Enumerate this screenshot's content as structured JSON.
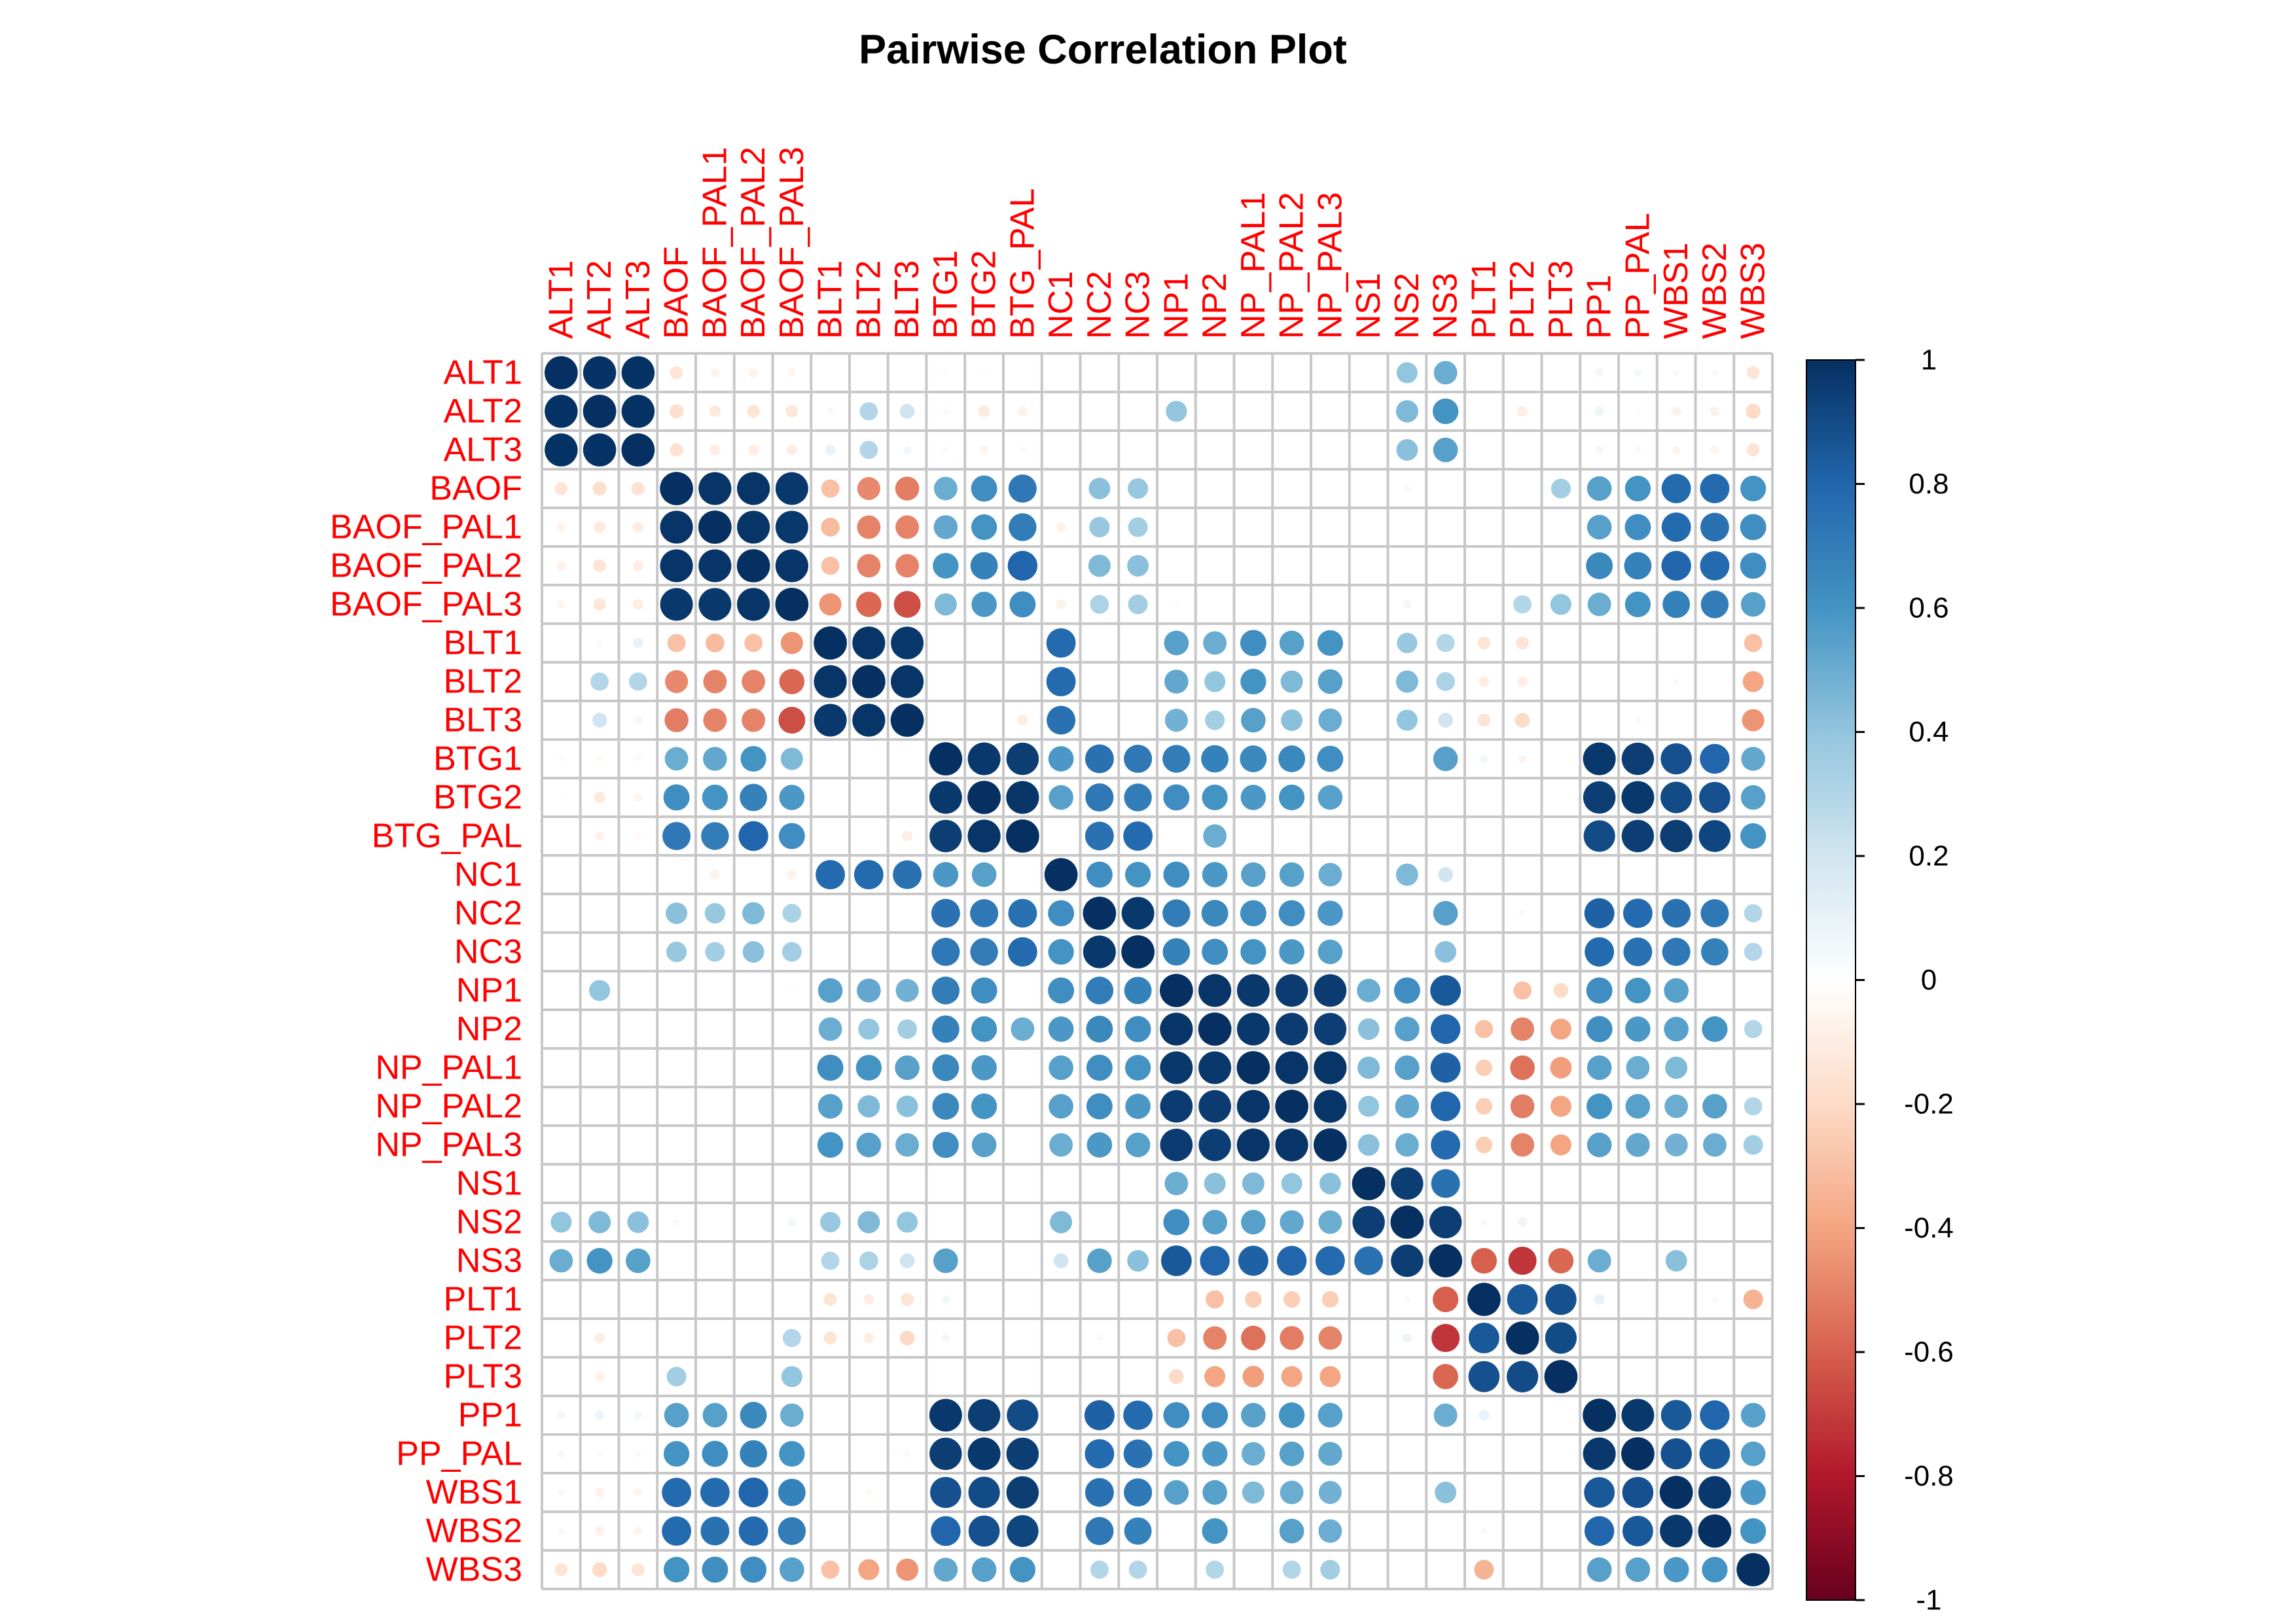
{
  "chart_data": {
    "type": "heatmap",
    "style": "circle correlation matrix",
    "title": "Pairwise Correlation Plot",
    "labels": [
      "ALT1",
      "ALT2",
      "ALT3",
      "BAOF",
      "BAOF_PAL1",
      "BAOF_PAL2",
      "BAOF_PAL3",
      "BLT1",
      "BLT2",
      "BLT3",
      "BTG1",
      "BTG2",
      "BTG_PAL",
      "NC1",
      "NC2",
      "NC3",
      "NP1",
      "NP2",
      "NP_PAL1",
      "NP_PAL2",
      "NP_PAL3",
      "NS1",
      "NS2",
      "NS3",
      "PLT1",
      "PLT2",
      "PLT3",
      "PP1",
      "PP_PAL",
      "WBS1",
      "WBS2",
      "WBS3"
    ],
    "label_color": "#FF0000",
    "colorbar": {
      "range": [
        -1,
        1
      ],
      "ticks": [
        "1",
        "0.8",
        "0.6",
        "0.4",
        "0.2",
        "0",
        "-0.2",
        "-0.4",
        "-0.6",
        "-0.8",
        "-1"
      ],
      "tick_values": [
        1,
        0.8,
        0.6,
        0.4,
        0.2,
        0,
        -0.2,
        -0.4,
        -0.6,
        -0.8,
        -1
      ],
      "palette": [
        "#67001F",
        "#B2182B",
        "#D6604D",
        "#F4A582",
        "#FDDBC7",
        "#FFFFFF",
        "#D1E5F0",
        "#92C5DE",
        "#4393C3",
        "#2166AC",
        "#053061"
      ]
    },
    "grid": true,
    "legend_position": "right",
    "matrix": [
      [
        1,
        0.99,
        0.99,
        -0.15,
        -0.07,
        -0.08,
        -0.06,
        0,
        0,
        0,
        -0.03,
        -0.02,
        0,
        0,
        0,
        0,
        0,
        0,
        0,
        0,
        0,
        0,
        0.4,
        0.5,
        0,
        0,
        0,
        0.06,
        0.05,
        0.04,
        0.04,
        -0.15
      ],
      [
        0.99,
        1,
        0.99,
        -0.18,
        -0.12,
        -0.15,
        -0.14,
        0.04,
        0.3,
        0.2,
        -0.04,
        -0.12,
        -0.08,
        0,
        0,
        0,
        0.4,
        0,
        0,
        0,
        0,
        0,
        0.45,
        0.6,
        0,
        -0.1,
        0,
        0.08,
        0.03,
        -0.08,
        -0.08,
        -0.2
      ],
      [
        0.99,
        0.99,
        1,
        -0.16,
        -0.1,
        -0.1,
        -0.1,
        0.1,
        0.3,
        0.06,
        -0.04,
        -0.06,
        -0.04,
        0,
        0,
        0,
        0,
        0,
        0,
        0,
        0,
        0,
        0.42,
        0.55,
        0,
        0,
        0,
        0.06,
        0.04,
        -0.06,
        -0.06,
        -0.15
      ],
      [
        -0.15,
        -0.18,
        -0.16,
        1,
        0.98,
        0.98,
        0.97,
        -0.3,
        -0.48,
        -0.52,
        0.5,
        0.62,
        0.72,
        0,
        0.42,
        0.38,
        0,
        0,
        0,
        0,
        0,
        0,
        0.04,
        0,
        0,
        0,
        0.35,
        0.55,
        0.6,
        0.78,
        0.78,
        0.6
      ],
      [
        -0.07,
        -0.12,
        -0.1,
        0.98,
        1,
        0.98,
        0.97,
        -0.32,
        -0.5,
        -0.5,
        0.52,
        0.6,
        0.7,
        -0.08,
        0.38,
        0.35,
        0,
        0,
        0,
        0,
        0,
        0,
        0,
        0,
        0,
        0,
        0,
        0.55,
        0.62,
        0.78,
        0.75,
        0.62
      ],
      [
        -0.08,
        -0.15,
        -0.1,
        0.98,
        0.98,
        1,
        0.98,
        -0.3,
        -0.5,
        -0.5,
        0.6,
        0.68,
        0.8,
        0,
        0.45,
        0.42,
        0,
        0,
        0,
        0,
        0,
        0,
        0,
        0,
        0,
        0,
        0,
        0.65,
        0.68,
        0.8,
        0.78,
        0.62
      ],
      [
        -0.06,
        -0.14,
        -0.1,
        0.97,
        0.97,
        0.98,
        1,
        -0.45,
        -0.58,
        -0.65,
        0.45,
        0.58,
        0.62,
        -0.08,
        0.32,
        0.35,
        0.02,
        0,
        0,
        0,
        0,
        0,
        0.06,
        0,
        0,
        0.3,
        0.4,
        0.5,
        0.6,
        0.68,
        0.7,
        0.55
      ],
      [
        0,
        0.04,
        0.1,
        -0.3,
        -0.32,
        -0.3,
        -0.45,
        1,
        0.98,
        0.97,
        0,
        0,
        0,
        0.78,
        0,
        0,
        0.55,
        0.5,
        0.62,
        0.55,
        0.6,
        0,
        0.38,
        0.3,
        -0.15,
        -0.15,
        0,
        0,
        0,
        0,
        0,
        -0.3
      ],
      [
        0,
        0.3,
        0.3,
        -0.48,
        -0.5,
        -0.5,
        -0.58,
        0.98,
        1,
        0.98,
        0,
        0,
        0,
        0.78,
        0,
        0,
        0.52,
        0.4,
        0.6,
        0.45,
        0.55,
        0,
        0.45,
        0.32,
        -0.1,
        -0.1,
        0,
        0,
        0,
        -0.04,
        0,
        -0.4
      ],
      [
        0,
        0.2,
        0.06,
        -0.52,
        -0.5,
        -0.5,
        -0.65,
        0.97,
        0.98,
        1,
        0,
        0,
        -0.1,
        0.75,
        0,
        0,
        0.48,
        0.35,
        0.55,
        0.42,
        0.5,
        0,
        0.4,
        0.2,
        -0.15,
        -0.2,
        0,
        0,
        -0.04,
        0,
        0,
        -0.45
      ],
      [
        -0.03,
        -0.04,
        -0.04,
        0.5,
        0.52,
        0.6,
        0.45,
        0,
        0,
        0,
        1,
        0.97,
        0.95,
        0.58,
        0.75,
        0.72,
        0.7,
        0.68,
        0.65,
        0.65,
        0.62,
        0,
        0,
        0.55,
        0.06,
        -0.06,
        0,
        0.97,
        0.95,
        0.88,
        0.8,
        0.52
      ],
      [
        -0.02,
        -0.12,
        -0.06,
        0.62,
        0.6,
        0.68,
        0.58,
        0,
        0,
        0,
        0.97,
        1,
        0.98,
        0.55,
        0.72,
        0.7,
        0.62,
        0.6,
        0.58,
        0.6,
        0.55,
        0,
        0,
        0,
        0,
        0,
        0,
        0.95,
        0.97,
        0.9,
        0.88,
        0.55
      ],
      [
        0,
        -0.08,
        -0.04,
        0.72,
        0.7,
        0.8,
        0.62,
        0,
        0,
        -0.1,
        0.95,
        0.98,
        1,
        0,
        0.75,
        0.78,
        0,
        0.5,
        0,
        0,
        0,
        0,
        0,
        0,
        0,
        0,
        0,
        0.9,
        0.95,
        0.95,
        0.92,
        0.6
      ],
      [
        0,
        0,
        0,
        0,
        -0.08,
        0,
        -0.08,
        0.78,
        0.78,
        0.75,
        0.58,
        0.55,
        0,
        1,
        0.62,
        0.6,
        0.62,
        0.58,
        0.55,
        0.55,
        0.5,
        0,
        0.45,
        0.2,
        0,
        0,
        0,
        0,
        0,
        0,
        0,
        0
      ],
      [
        0,
        0,
        0,
        0.42,
        0.38,
        0.45,
        0.32,
        0,
        0,
        0,
        0.75,
        0.72,
        0.75,
        0.62,
        1,
        0.97,
        0.7,
        0.65,
        0.62,
        0.62,
        0.58,
        0,
        0,
        0.55,
        0,
        0.04,
        0,
        0.82,
        0.78,
        0.75,
        0.72,
        0.3
      ],
      [
        0,
        0,
        0,
        0.38,
        0.35,
        0.42,
        0.35,
        0,
        0,
        0,
        0.72,
        0.7,
        0.78,
        0.6,
        0.97,
        1,
        0.68,
        0.62,
        0.6,
        0.58,
        0.55,
        0,
        0,
        0.42,
        0,
        0,
        0,
        0.78,
        0.75,
        0.72,
        0.68,
        0.3
      ],
      [
        0,
        0.4,
        0,
        0,
        0,
        0,
        0.02,
        0.55,
        0.52,
        0.48,
        0.7,
        0.62,
        0,
        0.62,
        0.7,
        0.68,
        1,
        0.98,
        0.97,
        0.96,
        0.96,
        0.5,
        0.62,
        0.85,
        0,
        -0.3,
        -0.2,
        0.62,
        0.6,
        0.55,
        0,
        0
      ],
      [
        0,
        0,
        0,
        0,
        0,
        0,
        0,
        0.5,
        0.4,
        0.35,
        0.68,
        0.6,
        0.5,
        0.58,
        0.65,
        0.62,
        0.98,
        1,
        0.97,
        0.96,
        0.95,
        0.42,
        0.55,
        0.8,
        -0.3,
        -0.5,
        -0.4,
        0.62,
        0.58,
        0.55,
        0.6,
        0.3
      ],
      [
        0,
        0,
        0,
        0,
        0,
        0,
        0,
        0.62,
        0.6,
        0.55,
        0.65,
        0.58,
        0,
        0.55,
        0.62,
        0.6,
        0.97,
        0.97,
        1,
        0.98,
        0.98,
        0.45,
        0.55,
        0.82,
        -0.25,
        -0.55,
        -0.42,
        0.55,
        0.5,
        0.45,
        0,
        0
      ],
      [
        0,
        0,
        0,
        0,
        0,
        0,
        0,
        0.55,
        0.45,
        0.42,
        0.65,
        0.6,
        0,
        0.55,
        0.62,
        0.58,
        0.96,
        0.96,
        0.98,
        1,
        0.98,
        0.4,
        0.52,
        0.8,
        -0.25,
        -0.52,
        -0.4,
        0.6,
        0.55,
        0.5,
        0.55,
        0.3
      ],
      [
        0,
        0,
        0,
        0,
        0,
        0,
        0,
        0.6,
        0.55,
        0.5,
        0.62,
        0.55,
        0,
        0.5,
        0.58,
        0.55,
        0.96,
        0.95,
        0.98,
        0.98,
        1,
        0.42,
        0.5,
        0.78,
        -0.25,
        -0.5,
        -0.4,
        0.55,
        0.52,
        0.48,
        0.5,
        0.35
      ],
      [
        0,
        0,
        0,
        0,
        0,
        0,
        0,
        0,
        0,
        0,
        0,
        0,
        0,
        0,
        0,
        0,
        0.5,
        0.42,
        0.45,
        0.4,
        0.42,
        1,
        0.95,
        0.75,
        0,
        0,
        0,
        0,
        0,
        0,
        0,
        0
      ],
      [
        0.4,
        0.45,
        0.42,
        0.04,
        0,
        0,
        0.06,
        0.38,
        0.45,
        0.4,
        0,
        0,
        0,
        0.45,
        0,
        0,
        0.62,
        0.55,
        0.55,
        0.52,
        0.5,
        0.95,
        1,
        0.95,
        0.04,
        0.08,
        0,
        0,
        0,
        0,
        0,
        0
      ],
      [
        0.5,
        0.6,
        0.55,
        0,
        0,
        0,
        0,
        0.3,
        0.32,
        0.2,
        0.55,
        0,
        0,
        0.2,
        0.55,
        0.42,
        0.85,
        0.8,
        0.82,
        0.8,
        0.78,
        0.75,
        0.95,
        1,
        -0.6,
        -0.72,
        -0.58,
        0.5,
        0,
        0.42,
        0,
        0
      ],
      [
        0,
        0,
        0,
        0,
        0,
        0,
        0,
        -0.15,
        -0.1,
        -0.15,
        0.06,
        0,
        0,
        0,
        0,
        0,
        0,
        -0.3,
        -0.25,
        -0.25,
        -0.25,
        0,
        0.04,
        -0.6,
        1,
        0.85,
        0.88,
        0.1,
        0,
        0,
        0.04,
        -0.35
      ],
      [
        0,
        -0.1,
        0,
        0,
        0,
        0,
        0.3,
        -0.15,
        -0.1,
        -0.2,
        -0.06,
        0,
        0,
        0,
        0.04,
        0,
        -0.3,
        -0.5,
        -0.55,
        -0.52,
        -0.5,
        0,
        0.08,
        -0.72,
        0.85,
        1,
        0.9,
        0,
        0,
        0,
        0,
        0
      ],
      [
        0,
        -0.08,
        0,
        0.35,
        0,
        0,
        0.4,
        0,
        0,
        0,
        0,
        0,
        0,
        0,
        0,
        0,
        -0.2,
        -0.4,
        -0.42,
        -0.4,
        -0.4,
        0,
        0,
        -0.58,
        0.88,
        0.9,
        1,
        0,
        0,
        0,
        0,
        0
      ],
      [
        0.06,
        0.08,
        0.06,
        0.55,
        0.55,
        0.65,
        0.5,
        0,
        0,
        0,
        0.97,
        0.95,
        0.9,
        0,
        0.82,
        0.78,
        0.62,
        0.62,
        0.55,
        0.6,
        0.55,
        0,
        0,
        0.5,
        0.1,
        0,
        0,
        1,
        0.97,
        0.85,
        0.8,
        0.55
      ],
      [
        0.05,
        0.03,
        0.04,
        0.6,
        0.62,
        0.68,
        0.6,
        0,
        0,
        -0.04,
        0.95,
        0.97,
        0.95,
        0,
        0.78,
        0.75,
        0.6,
        0.58,
        0.5,
        0.55,
        0.52,
        0,
        0,
        0,
        0,
        0,
        0,
        0.97,
        1,
        0.88,
        0.85,
        0.55
      ],
      [
        0.04,
        -0.08,
        -0.06,
        0.78,
        0.78,
        0.8,
        0.68,
        0,
        -0.04,
        0,
        0.88,
        0.9,
        0.95,
        0,
        0.75,
        0.72,
        0.55,
        0.55,
        0.45,
        0.5,
        0.48,
        0,
        0,
        0.42,
        0,
        0,
        0,
        0.85,
        0.88,
        1,
        0.97,
        0.58
      ],
      [
        0.04,
        -0.08,
        -0.06,
        0.78,
        0.75,
        0.78,
        0.7,
        0,
        0,
        0,
        0.8,
        0.88,
        0.92,
        0,
        0.72,
        0.68,
        0,
        0.6,
        0,
        0.55,
        0.5,
        0,
        0,
        0,
        0.04,
        0,
        0,
        0.8,
        0.85,
        0.97,
        1,
        0.6
      ],
      [
        -0.15,
        -0.2,
        -0.15,
        0.6,
        0.62,
        0.62,
        0.55,
        -0.3,
        -0.4,
        -0.45,
        0.52,
        0.55,
        0.6,
        0,
        0.3,
        0.3,
        0,
        0.3,
        0,
        0.3,
        0.35,
        0,
        0,
        0,
        -0.35,
        0,
        0,
        0.55,
        0.55,
        0.58,
        0.6,
        1
      ]
    ]
  }
}
